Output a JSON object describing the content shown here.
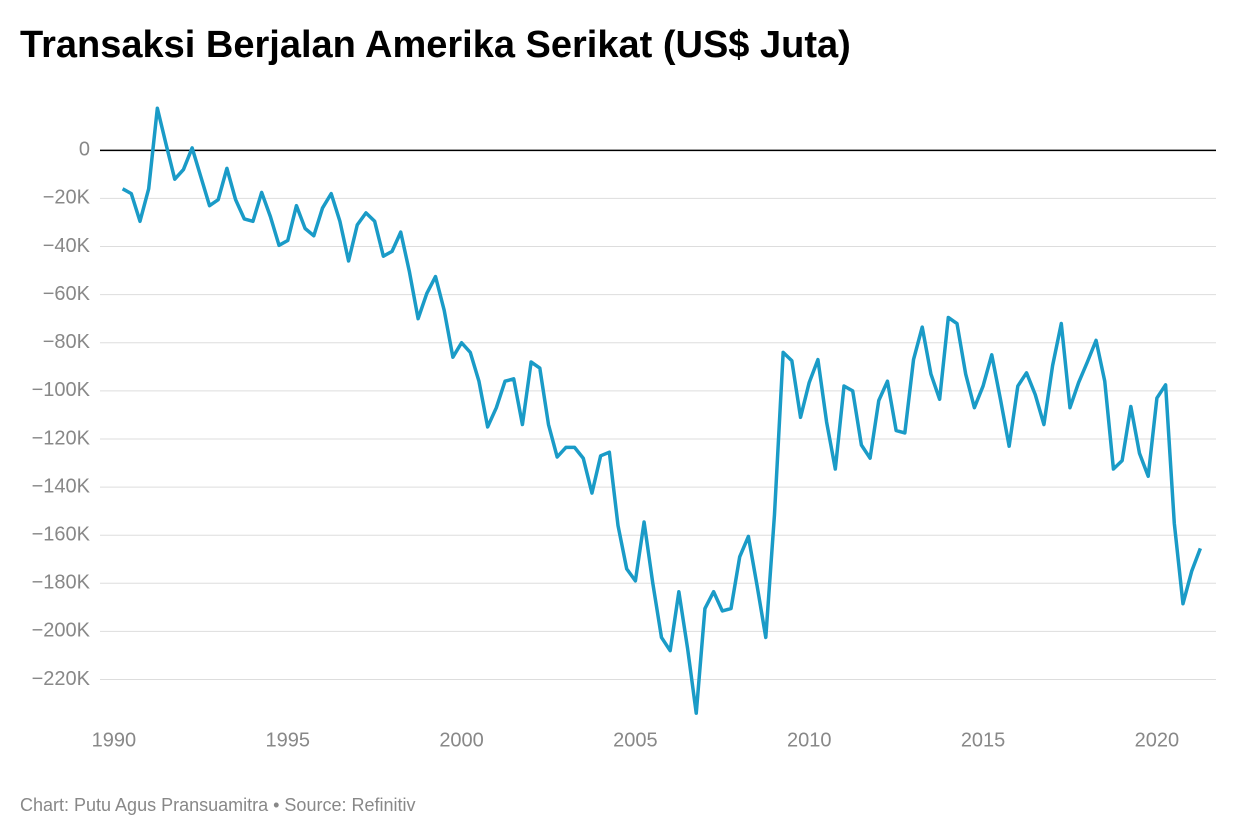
{
  "chart_data": {
    "type": "line",
    "title": "Transaksi Berjalan Amerika Serikat (US$ Juta)",
    "source": "Chart: Putu Agus Pransuamitra • Source: Refinitiv",
    "color": "#1a9bc7",
    "x": [
      1990.25,
      1990.5,
      1990.75,
      1991,
      1991.25,
      1991.5,
      1991.75,
      1992,
      1992.25,
      1992.5,
      1992.75,
      1993,
      1993.25,
      1993.5,
      1993.75,
      1994,
      1994.25,
      1994.5,
      1994.75,
      1995,
      1995.25,
      1995.5,
      1995.75,
      1996,
      1996.25,
      1996.5,
      1996.75,
      1997,
      1997.25,
      1997.5,
      1997.75,
      1998,
      1998.25,
      1998.5,
      1998.75,
      1999,
      1999.25,
      1999.5,
      1999.75,
      2000,
      2000.25,
      2000.5,
      2000.75,
      2001,
      2001.25,
      2001.5,
      2001.75,
      2002,
      2002.25,
      2002.5,
      2002.75,
      2003,
      2003.25,
      2003.5,
      2003.75,
      2004,
      2004.25,
      2004.5,
      2004.75,
      2005,
      2005.25,
      2005.5,
      2005.75,
      2006,
      2006.25,
      2006.5,
      2006.75,
      2007,
      2007.25,
      2007.5,
      2007.75,
      2008,
      2008.25,
      2008.5,
      2008.75,
      2009,
      2009.25,
      2009.5,
      2009.75,
      2010,
      2010.25,
      2010.5,
      2010.75,
      2011,
      2011.25,
      2011.5,
      2011.75,
      2012,
      2012.25,
      2012.5,
      2012.75,
      2013,
      2013.25,
      2013.5,
      2013.75,
      2014,
      2014.25,
      2014.5,
      2014.75,
      2015,
      2015.25,
      2015.5,
      2015.75,
      2016,
      2016.25,
      2016.5,
      2016.75,
      2017,
      2017.25,
      2017.5,
      2017.75,
      2018,
      2018.25,
      2018.5,
      2018.75,
      2019,
      2019.25,
      2019.5,
      2019.75,
      2020,
      2020.25,
      2020.5,
      2020.75,
      2021,
      2021.25
    ],
    "values": [
      -16000,
      -18000,
      -29500,
      -16000,
      17500,
      2500,
      -12000,
      -8000,
      1000,
      -11000,
      -23000,
      -20500,
      -7500,
      -20500,
      -28500,
      -29500,
      -17500,
      -27500,
      -39500,
      -37500,
      -23000,
      -32500,
      -35500,
      -24000,
      -18000,
      -29500,
      -46000,
      -31000,
      -26000,
      -29500,
      -44000,
      -42000,
      -34000,
      -50500,
      -70000,
      -59500,
      -52500,
      -66500,
      -86000,
      -80000,
      -84000,
      -96000,
      -115000,
      -107000,
      -96000,
      -95000,
      -114000,
      -88000,
      -90500,
      -114000,
      -127500,
      -123500,
      -123500,
      -128000,
      -142500,
      -127000,
      -125500,
      -156000,
      -174000,
      -179000,
      -154500,
      -180000,
      -202500,
      -208000,
      -183500,
      -207000,
      -234000,
      -190500,
      -183500,
      -191500,
      -190500,
      -169000,
      -160500,
      -181000,
      -202500,
      -151500,
      -84000,
      -87500,
      -111000,
      -96500,
      -87000,
      -113000,
      -132500,
      -98000,
      -100000,
      -122500,
      -128000,
      -104000,
      -96000,
      -116500,
      -117500,
      -87000,
      -73500,
      -93000,
      -103500,
      -69500,
      -72000,
      -93000,
      -107000,
      -98000,
      -85000,
      -103500,
      -123000,
      -98000,
      -92500,
      -101500,
      -114000,
      -89500,
      -72000,
      -107000,
      -96500,
      -88000,
      -79000,
      -96000,
      -132500,
      -129000,
      -106500,
      -126000,
      -135500,
      -103000,
      -97500,
      -155000,
      -188500,
      -175000,
      -165500
    ],
    "xlim": [
      1989.6,
      2021.7
    ],
    "xticks": [
      1990,
      1995,
      2000,
      2005,
      2010,
      2015,
      2020
    ],
    "ylim": [
      -236000,
      23000
    ],
    "yticks": [
      0,
      {
        "value": -20000,
        "label": "−20K"
      },
      {
        "value": -40000,
        "label": "−40K"
      },
      {
        "value": -60000,
        "label": "−60K"
      },
      {
        "value": -80000,
        "label": "−80K"
      },
      {
        "value": -100000,
        "label": "−100K"
      },
      {
        "value": -120000,
        "label": "−120K"
      },
      {
        "value": -140000,
        "label": "−140K"
      },
      {
        "value": -160000,
        "label": "−160K"
      },
      {
        "value": -180000,
        "label": "−180K"
      },
      {
        "value": -200000,
        "label": "−200K"
      },
      {
        "value": -220000,
        "label": "−220K"
      }
    ],
    "grid": true
  }
}
